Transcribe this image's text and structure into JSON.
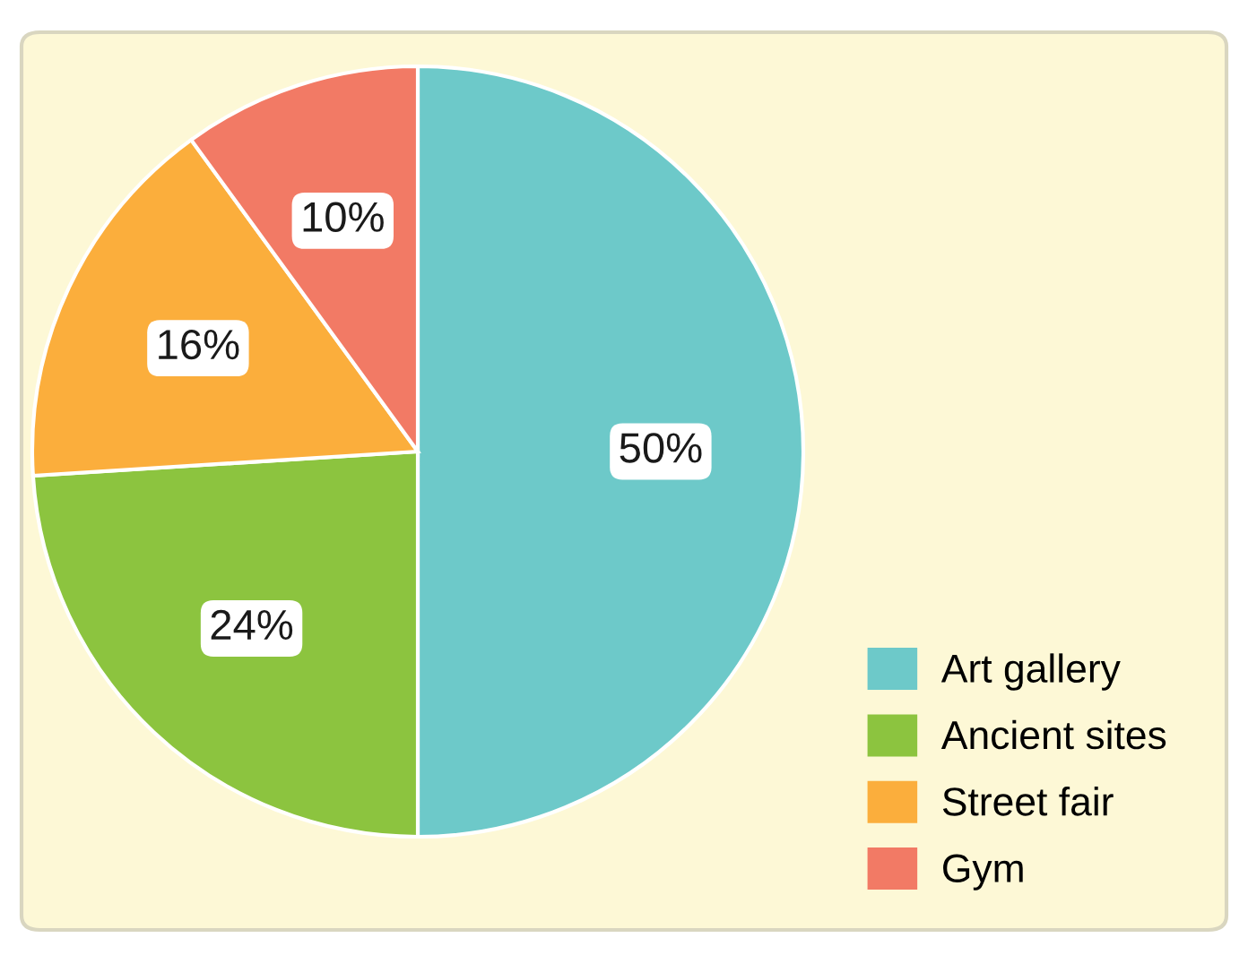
{
  "chart_data": {
    "type": "pie",
    "categories": [
      "Art gallery",
      "Ancient sites",
      "Street fair",
      "Gym"
    ],
    "values": [
      50,
      24,
      16,
      10
    ],
    "colors": [
      "#6dc9c9",
      "#8cc43f",
      "#fbae3c",
      "#f27a65"
    ],
    "value_labels": [
      "50%",
      "24%",
      "16%",
      "10%"
    ],
    "legend": "bottom right"
  }
}
